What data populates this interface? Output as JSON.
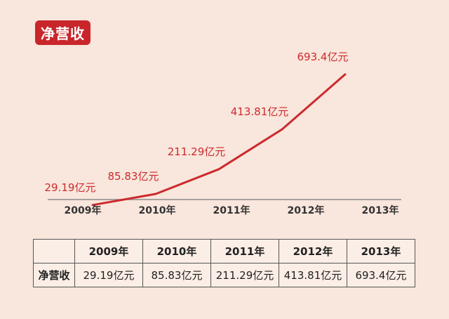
{
  "badge_label": "净营收",
  "chart_data": {
    "type": "line",
    "categories": [
      "2009年",
      "2010年",
      "2011年",
      "2012年",
      "2013年"
    ],
    "series": [
      {
        "values": [
          29.19,
          85.83,
          211.29,
          413.81,
          693.4
        ]
      }
    ],
    "data_labels": [
      "29.19亿元",
      "85.83亿元",
      "211.29亿元",
      "413.81亿元",
      "693.4亿元"
    ],
    "title": "",
    "xlabel": "",
    "ylabel": "",
    "ylim": [
      0,
      700
    ],
    "grid": false,
    "line_color": "#cc2a2e",
    "label_color": "#cc2a2e"
  },
  "table": {
    "corner": "",
    "headers": [
      "2009年",
      "2010年",
      "2011年",
      "2012年",
      "2013年"
    ],
    "row_label": "净营收",
    "cells": [
      "29.19亿元",
      "85.83亿元",
      "211.29亿元",
      "413.81亿元",
      "693.4亿元"
    ]
  }
}
